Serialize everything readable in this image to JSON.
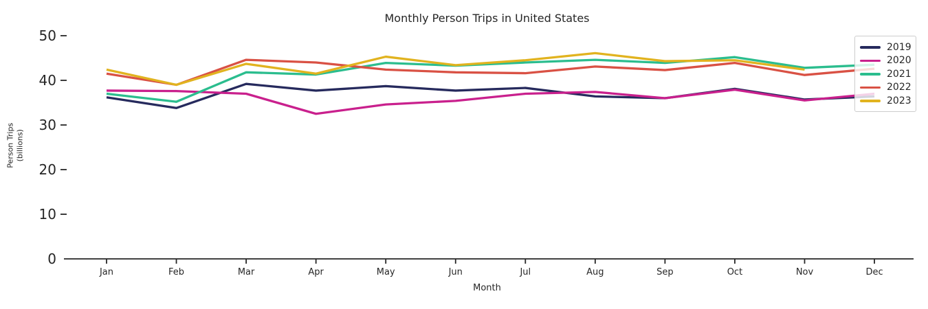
{
  "chart_data": {
    "type": "line",
    "title": "Monthly Person Trips in United States",
    "xlabel": "Month",
    "ylabel_lines": [
      "Person Trips",
      "(billions)"
    ],
    "categories": [
      "Jan",
      "Feb",
      "Mar",
      "Apr",
      "May",
      "Jun",
      "Jul",
      "Aug",
      "Sep",
      "Oct",
      "Nov",
      "Dec"
    ],
    "y_ticks": [
      0,
      10,
      20,
      30,
      40,
      50
    ],
    "ylim": [
      0,
      52
    ],
    "grid": false,
    "legend_position": "upper right",
    "axis_color": "#262626",
    "series": [
      {
        "name": "2019",
        "color": "#262a5d",
        "values": [
          36.2,
          33.8,
          39.2,
          37.7,
          38.7,
          37.7,
          38.3,
          36.4,
          36.0,
          38.1,
          35.7,
          36.4
        ]
      },
      {
        "name": "2020",
        "color": "#c9208d",
        "values": [
          37.7,
          37.6,
          37.0,
          32.5,
          34.6,
          35.4,
          37.0,
          37.4,
          36.0,
          37.9,
          35.5,
          37.0
        ]
      },
      {
        "name": "2021",
        "color": "#2bbd8e",
        "values": [
          37.0,
          35.2,
          41.8,
          41.3,
          43.9,
          43.3,
          44.0,
          44.6,
          43.9,
          45.2,
          42.8,
          43.5
        ]
      },
      {
        "name": "2022",
        "color": "#d95144",
        "values": [
          41.5,
          39.0,
          44.6,
          44.0,
          42.4,
          41.8,
          41.6,
          43.1,
          42.3,
          43.9,
          41.2,
          42.6
        ]
      },
      {
        "name": "2023",
        "color": "#e1b31f",
        "values": [
          42.4,
          39.0,
          43.7,
          41.5,
          45.3,
          43.4,
          44.5,
          46.1,
          44.3,
          44.5,
          42.4
        ]
      }
    ]
  }
}
